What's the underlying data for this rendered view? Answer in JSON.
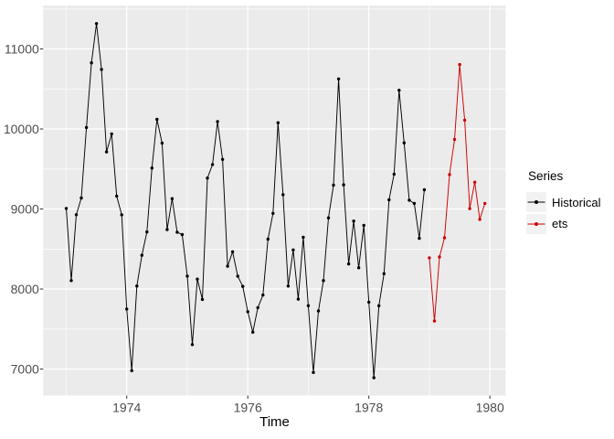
{
  "figure": {
    "background": "#FFFFFF"
  },
  "chart_data": {
    "type": "line",
    "title": "",
    "xlabel": "Time",
    "ylabel": "",
    "grid": true,
    "legend_position": "right",
    "xlim": [
      1972.62,
      1980.26
    ],
    "ylim": [
      6669,
      11543
    ],
    "x_ticks": {
      "major": [
        1974,
        1976,
        1978,
        1980
      ],
      "minor": [
        1973,
        1975,
        1977,
        1979
      ],
      "labels": [
        "1974",
        "1976",
        "1978",
        "1980"
      ]
    },
    "y_ticks": {
      "major": [
        7000,
        8000,
        9000,
        10000,
        11000
      ],
      "minor": [
        7500,
        8500,
        9500,
        10500,
        11500
      ],
      "labels": [
        "7000",
        "8000",
        "9000",
        "10000",
        "11000"
      ]
    },
    "series": [
      {
        "name": "Historical",
        "color": "#000000",
        "start": 1973,
        "frequency": 12,
        "values": [
          9007,
          8106,
          8928,
          9137,
          10017,
          10826,
          11317,
          10744,
          9713,
          9938,
          9161,
          8927,
          7750,
          6981,
          8038,
          8422,
          8714,
          9512,
          10120,
          9823,
          8743,
          9129,
          8710,
          8680,
          8162,
          7306,
          8124,
          7870,
          9387,
          9556,
          10093,
          9620,
          8285,
          8466,
          8160,
          8034,
          7717,
          7461,
          7767,
          7925,
          8623,
          8945,
          10078,
          9179,
          8037,
          8488,
          7874,
          8647,
          7792,
          6957,
          7726,
          8106,
          8890,
          9299,
          10625,
          9302,
          8314,
          8850,
          8265,
          8796,
          7836,
          6892,
          7791,
          8192,
          9115,
          9434,
          10484,
          9827,
          9110,
          9070,
          8633,
          9240
        ]
      },
      {
        "name": "ets",
        "color": "#CC0000",
        "start": 1979,
        "frequency": 12,
        "values": [
          8390,
          7600,
          8400,
          8640,
          9430,
          9870,
          10805,
          10110,
          9005,
          9335,
          8870,
          9070
        ]
      }
    ]
  },
  "legend": {
    "title": "Series",
    "items": [
      {
        "label": "Historical",
        "color": "#000000"
      },
      {
        "label": "ets",
        "color": "#CC0000"
      }
    ]
  },
  "colors": {
    "panel_bg": "#EBEBEB",
    "gridline": "#FFFFFF",
    "tick_mark": "#333333",
    "tick_label": "#4D4D4D",
    "axis_title": "#000000",
    "legend_key_bg": "#F2F2F2"
  }
}
